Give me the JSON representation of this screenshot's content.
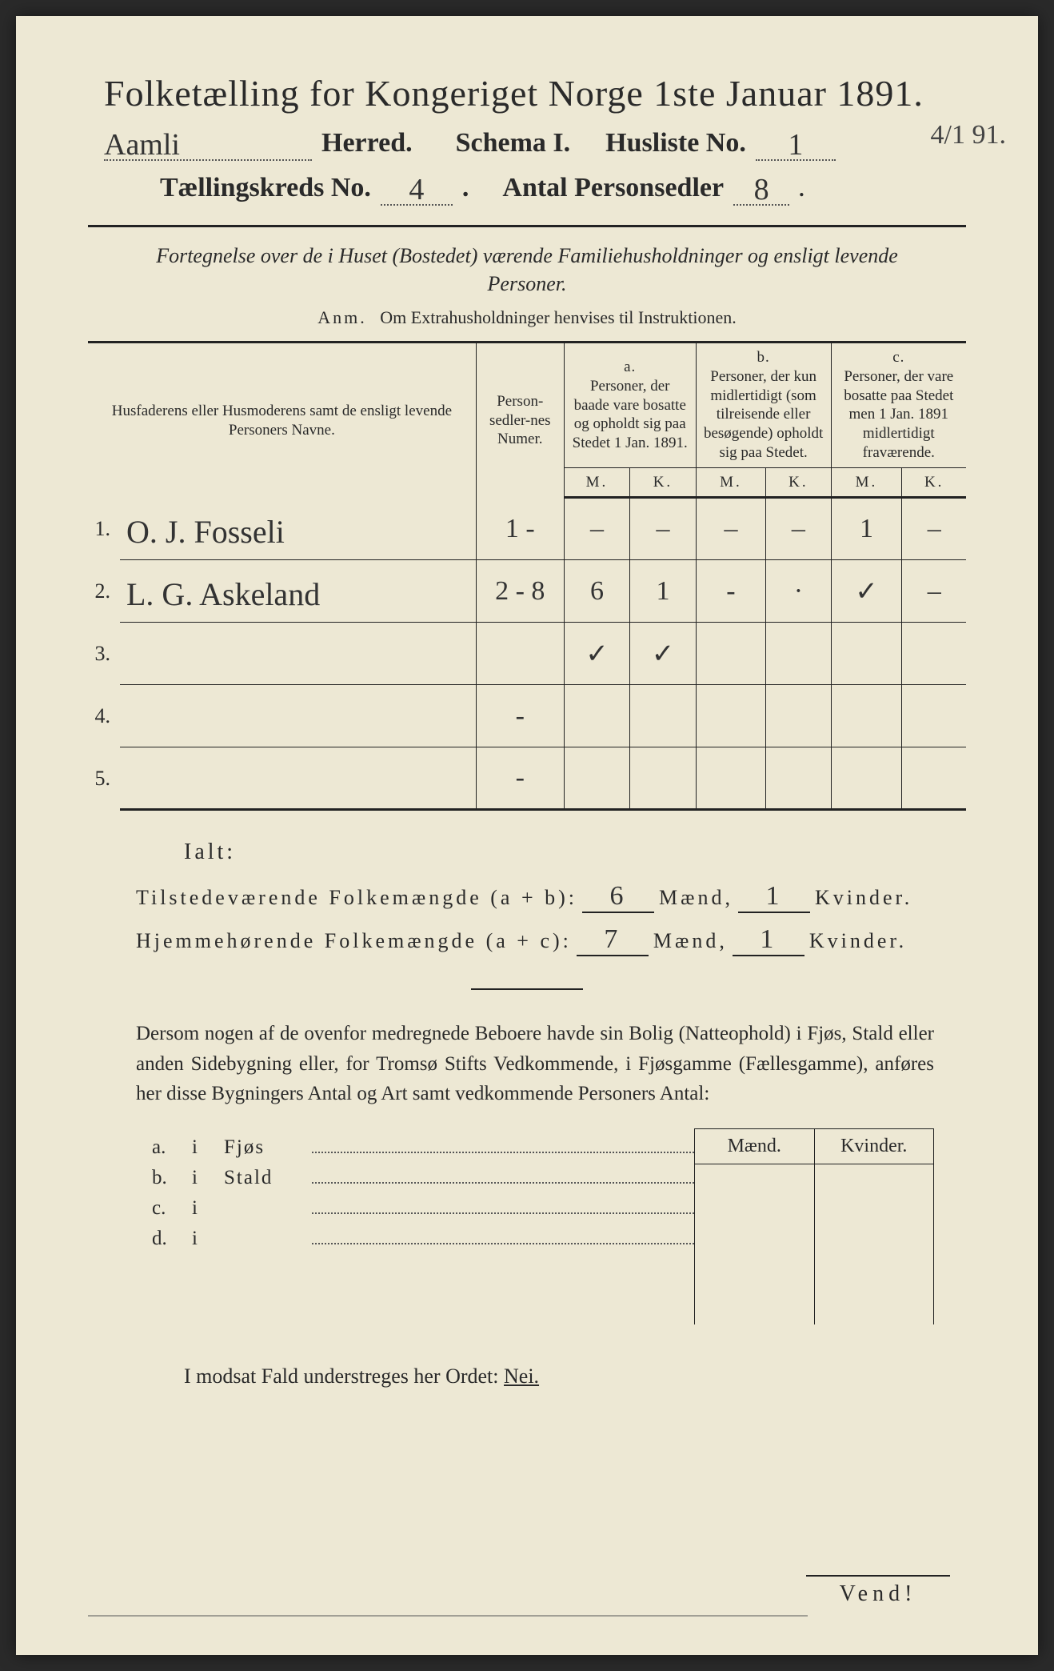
{
  "header": {
    "main_title": "Folketælling for Kongeriget Norge 1ste Januar 1891.",
    "herred_value": "Aamli",
    "herred_label": "Herred.",
    "schema_label": "Schema I.",
    "husliste_label": "Husliste No.",
    "husliste_value": "1",
    "margin_note": "4/1 91.",
    "kreds_label": "Tællingskreds No.",
    "kreds_value": "4",
    "personsedler_label": "Antal Personsedler",
    "personsedler_value": "8"
  },
  "subheading": "Fortegnelse over de i Huset (Bostedet) værende Familiehusholdninger og ensligt levende Personer.",
  "anm_label": "Anm.",
  "anm_text": "Om Extrahusholdninger henvises til Instruktionen.",
  "table": {
    "col_names": "Husfaderens eller Husmoderens samt de ensligt levende Personers Navne.",
    "col_numer": "Person-sedler-nes Numer.",
    "col_a_label": "a.",
    "col_a_text": "Personer, der baade vare bosatte og opholdt sig paa Stedet 1 Jan. 1891.",
    "col_b_label": "b.",
    "col_b_text": "Personer, der kun midlertidigt (som tilreisende eller besøgende) opholdt sig paa Stedet.",
    "col_c_label": "c.",
    "col_c_text": "Personer, der vare bosatte paa Stedet men 1 Jan. 1891 midlertidigt fraværende.",
    "M": "M.",
    "K": "K.",
    "rows": [
      {
        "n": "1.",
        "name": "O. J. Fosseli",
        "num": "1 -",
        "aM": "–",
        "aK": "–",
        "bM": "–",
        "bK": "–",
        "cM": "1",
        "cK": "–"
      },
      {
        "n": "2.",
        "name": "L. G. Askeland",
        "num": "2 - 8",
        "aM": "6",
        "aK": "1",
        "bM": "-",
        "bK": "·",
        "cM": "✓",
        "cK": "–"
      },
      {
        "n": "3.",
        "name": "",
        "num": "",
        "aM": "✓",
        "aK": "✓",
        "bM": "",
        "bK": "",
        "cM": "",
        "cK": ""
      },
      {
        "n": "4.",
        "name": "",
        "num": "-",
        "aM": "",
        "aK": "",
        "bM": "",
        "bK": "",
        "cM": "",
        "cK": ""
      },
      {
        "n": "5.",
        "name": "",
        "num": "-",
        "aM": "",
        "aK": "",
        "bM": "",
        "bK": "",
        "cM": "",
        "cK": ""
      }
    ]
  },
  "ialt": "Ialt:",
  "totals": {
    "line1_label": "Tilstedeværende Folkemængde (a + b):",
    "line1_m": "6",
    "line1_k": "1",
    "line2_label": "Hjemmehørende Folkemængde (a + c):",
    "line2_m": "7",
    "line2_k": "1",
    "maend": "Mænd,",
    "kvinder": "Kvinder."
  },
  "para": "Dersom nogen af de ovenfor medregnede Beboere havde sin Bolig (Natteophold) i Fjøs, Stald eller anden Sidebygning eller, for Tromsø Stifts Vedkommende, i Fjøsgamme (Fællesgamme), anføres her disse Bygningers Antal og Art samt vedkommende Personers Antal:",
  "bottom_table": {
    "maend": "Mænd.",
    "kvinder": "Kvinder.",
    "rows": [
      {
        "lab": "a.",
        "i": "i",
        "word": "Fjøs"
      },
      {
        "lab": "b.",
        "i": "i",
        "word": "Stald"
      },
      {
        "lab": "c.",
        "i": "i",
        "word": ""
      },
      {
        "lab": "d.",
        "i": "i",
        "word": ""
      }
    ]
  },
  "nei_line_pre": "I modsat Fald understreges her Ordet: ",
  "nei_word": "Nei.",
  "vend": "Vend!",
  "colors": {
    "paper": "#ede8d4",
    "ink": "#2a2a2a",
    "handwriting": "#333333",
    "rule": "#222222"
  },
  "typography": {
    "title_fontsize_pt": 34,
    "body_fontsize_pt": 19,
    "handwriting_font": "cursive"
  }
}
